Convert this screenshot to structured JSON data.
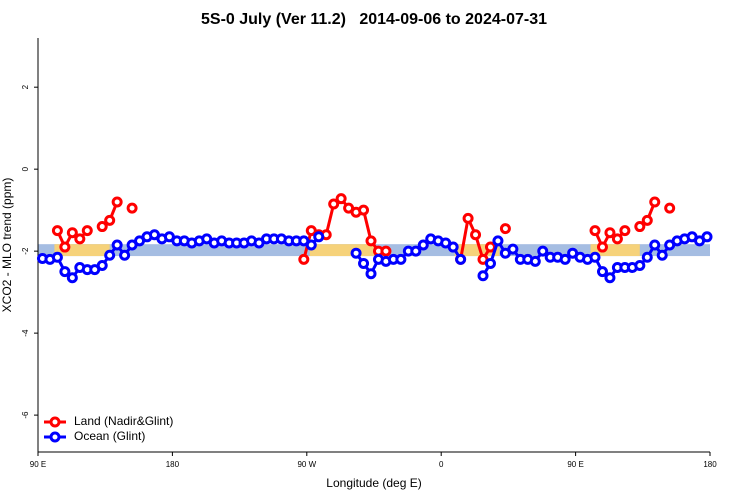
{
  "chart_data": {
    "type": "line",
    "title": "5S-0 July (Ver 11.2)   2014-09-06 to 2024-07-31",
    "x_label": "Longitude (deg E)",
    "y_label": "XCO2 - MLO trend (ppm)",
    "xlim": [
      90,
      540
    ],
    "ylim": [
      -6.9,
      3.2
    ],
    "xticks": [
      {
        "value": 90,
        "label": "90 E"
      },
      180,
      {
        "value": 270,
        "label": "90 W"
      },
      {
        "value": 360,
        "label": "0"
      },
      {
        "value": 450,
        "label": "90 E"
      },
      {
        "value": 540,
        "label": "180"
      }
    ],
    "yticks": [
      2,
      0,
      -2,
      -4,
      -6
    ],
    "band": [
      -2.12,
      -1.83
    ],
    "band_color": "#a5bde2",
    "band_highlights": [
      [
        101,
        138
      ],
      [
        272,
        316
      ],
      [
        369,
        399
      ],
      [
        460,
        493
      ]
    ],
    "highlight_color": "#f6d27a",
    "legend": "bottom-left",
    "x": [
      93,
      98,
      103,
      108,
      113,
      118,
      123,
      128,
      133,
      138,
      143,
      148,
      153,
      158,
      163,
      168,
      173,
      178,
      183,
      188,
      193,
      198,
      203,
      208,
      213,
      218,
      223,
      228,
      233,
      238,
      243,
      248,
      253,
      258,
      263,
      268,
      273,
      278,
      283,
      288,
      293,
      298,
      303,
      308,
      313,
      318,
      323,
      328,
      333,
      338,
      343,
      348,
      353,
      358,
      363,
      368,
      373,
      378,
      383,
      388,
      393,
      398,
      403,
      408,
      413,
      418,
      423,
      428,
      433,
      438,
      443,
      448,
      453,
      458,
      463,
      468,
      473,
      478,
      483,
      488,
      493,
      498,
      503,
      508,
      513,
      518,
      523,
      528,
      533,
      538
    ],
    "series": [
      {
        "name": "Land (Nadir&Glint)",
        "color": "#ff0000",
        "values": [
          null,
          null,
          -1.5,
          -1.9,
          -1.55,
          -1.7,
          -1.5,
          null,
          -1.4,
          -1.25,
          -0.8,
          null,
          -0.95,
          null,
          null,
          null,
          null,
          null,
          null,
          null,
          null,
          null,
          null,
          null,
          null,
          null,
          null,
          null,
          null,
          null,
          null,
          null,
          null,
          null,
          null,
          -2.2,
          -1.5,
          -1.6,
          -1.6,
          -0.85,
          -0.72,
          -0.95,
          -1.05,
          -1.0,
          -1.75,
          -2.0,
          -2.0,
          null,
          null,
          null,
          null,
          null,
          null,
          null,
          null,
          null,
          -2.2,
          -1.2,
          -1.6,
          -2.2,
          -1.9,
          null,
          -1.45,
          null,
          null,
          null,
          null,
          null,
          null,
          null,
          null,
          null,
          null,
          null,
          -1.5,
          -1.9,
          -1.55,
          -1.7,
          -1.5,
          null,
          -1.4,
          -1.25,
          -0.8,
          null,
          -0.95,
          null,
          null,
          null,
          null,
          null
        ]
      },
      {
        "name": "Ocean (Glint)",
        "color": "#0000ff",
        "values": [
          -2.18,
          -2.2,
          -2.15,
          -2.5,
          -2.65,
          -2.4,
          -2.45,
          -2.45,
          -2.35,
          -2.1,
          -1.85,
          -2.1,
          -1.85,
          -1.75,
          -1.65,
          -1.6,
          -1.7,
          -1.65,
          -1.75,
          -1.75,
          -1.8,
          -1.75,
          -1.7,
          -1.8,
          -1.75,
          -1.8,
          -1.8,
          -1.8,
          -1.75,
          -1.8,
          -1.7,
          -1.7,
          -1.7,
          -1.75,
          -1.75,
          -1.75,
          -1.85,
          -1.65,
          null,
          null,
          null,
          null,
          -2.05,
          -2.3,
          -2.55,
          -2.2,
          -2.25,
          -2.2,
          -2.2,
          -2.0,
          -2.0,
          -1.85,
          -1.7,
          -1.75,
          -1.8,
          -1.9,
          -2.2,
          null,
          null,
          -2.6,
          -2.3,
          -1.75,
          -2.05,
          -1.95,
          -2.2,
          -2.2,
          -2.25,
          -2.0,
          -2.15,
          -2.15,
          -2.2,
          -2.05,
          -2.15,
          -2.2,
          -2.15,
          -2.5,
          -2.65,
          -2.4,
          -2.4,
          -2.4,
          -2.35,
          -2.15,
          -1.85,
          -2.1,
          -1.85,
          -1.75,
          -1.7,
          -1.65,
          -1.75,
          -1.65
        ]
      }
    ]
  }
}
